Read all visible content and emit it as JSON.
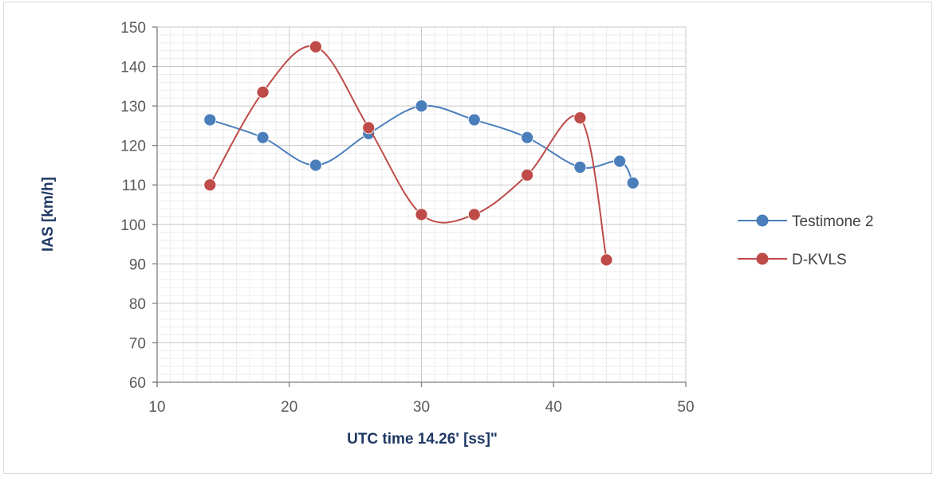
{
  "chart_data": {
    "type": "line",
    "title": "",
    "xlabel": "UTC time 14.26' [ss]\"",
    "ylabel": "IAS [km/h]",
    "xlim": [
      10,
      50
    ],
    "ylim": [
      60,
      150
    ],
    "xticks": [
      10,
      20,
      30,
      40,
      50
    ],
    "yticks": [
      60,
      70,
      80,
      90,
      100,
      110,
      120,
      130,
      140,
      150
    ],
    "x_minor_step": 1,
    "y_minor_step": 2,
    "grid": true,
    "smooth": true,
    "legend_position": "right",
    "series": [
      {
        "name": "Testimone 2",
        "color": "#4a7ebb",
        "x": [
          14,
          18,
          22,
          26,
          30,
          34,
          38,
          42,
          45,
          46
        ],
        "y": [
          126.5,
          122,
          115,
          123,
          130,
          126.5,
          122,
          114.5,
          116,
          110.5
        ]
      },
      {
        "name": "D-KVLS",
        "color": "#be4b48",
        "x": [
          14,
          18,
          22,
          26,
          30,
          34,
          38,
          42,
          44
        ],
        "y": [
          110,
          133.5,
          145,
          124.5,
          102.5,
          102.5,
          112.5,
          127,
          91
        ]
      }
    ]
  }
}
